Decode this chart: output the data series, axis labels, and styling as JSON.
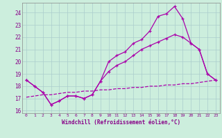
{
  "xlabel": "Windchill (Refroidissement éolien,°C)",
  "background_color": "#cceedd",
  "grid_color": "#aacccc",
  "line_color": "#aa00aa",
  "xlim": [
    -0.5,
    23.5
  ],
  "ylim": [
    15.8,
    24.8
  ],
  "yticks": [
    16,
    17,
    18,
    19,
    20,
    21,
    22,
    23,
    24
  ],
  "xticks": [
    0,
    1,
    2,
    3,
    4,
    5,
    6,
    7,
    8,
    9,
    10,
    11,
    12,
    13,
    14,
    15,
    16,
    17,
    18,
    19,
    20,
    21,
    22,
    23
  ],
  "line_top_x": [
    0,
    1,
    2,
    3,
    4,
    5,
    6,
    7,
    8,
    9,
    10,
    11,
    12,
    13,
    14,
    15,
    16,
    17,
    18,
    19,
    20,
    21,
    22,
    23
  ],
  "line_top_y": [
    18.5,
    18.0,
    17.5,
    16.5,
    16.8,
    17.2,
    17.2,
    17.0,
    17.3,
    18.4,
    20.0,
    20.5,
    20.8,
    21.5,
    21.8,
    22.5,
    23.7,
    23.9,
    24.5,
    23.5,
    21.5,
    21.0,
    19.0,
    18.5
  ],
  "line_mid_x": [
    0,
    1,
    2,
    3,
    4,
    5,
    6,
    7,
    8,
    9,
    10,
    11,
    12,
    13,
    14,
    15,
    16,
    17,
    18,
    19,
    20,
    21,
    22,
    23
  ],
  "line_mid_y": [
    18.5,
    18.0,
    17.5,
    16.5,
    16.8,
    17.2,
    17.2,
    17.0,
    17.3,
    18.4,
    19.2,
    19.7,
    20.0,
    20.5,
    21.0,
    21.3,
    21.6,
    21.9,
    22.2,
    22.0,
    21.5,
    21.0,
    19.0,
    18.5
  ],
  "line_bot_x": [
    0,
    1,
    2,
    3,
    4,
    5,
    6,
    7,
    8,
    9,
    10,
    11,
    12,
    13,
    14,
    15,
    16,
    17,
    18,
    19,
    20,
    21,
    22,
    23
  ],
  "line_bot_y": [
    17.1,
    17.2,
    17.3,
    17.3,
    17.4,
    17.5,
    17.5,
    17.6,
    17.6,
    17.7,
    17.7,
    17.8,
    17.8,
    17.9,
    17.9,
    18.0,
    18.0,
    18.1,
    18.1,
    18.2,
    18.2,
    18.3,
    18.4,
    18.5
  ]
}
